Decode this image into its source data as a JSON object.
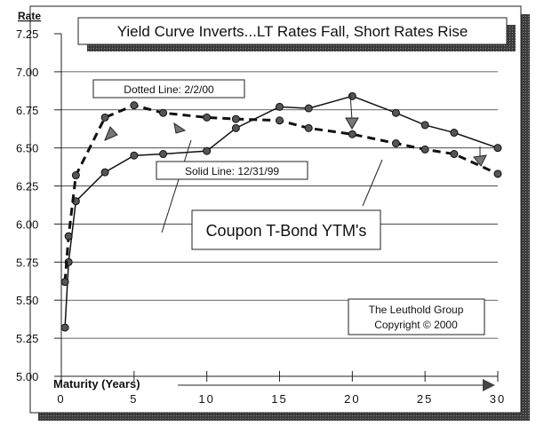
{
  "chart_data": {
    "type": "line",
    "title": "Yield Curve Inverts...LT Rates Fall, Short Rates Rise",
    "subtitle": "Coupon T-Bond YTM's",
    "xlabel": "Maturity (Years)",
    "ylabel": "Rate",
    "xlim": [
      0,
      30
    ],
    "ylim": [
      5.0,
      7.25
    ],
    "x_ticks": [
      "0",
      "5",
      "10",
      "15",
      "20",
      "25",
      "30"
    ],
    "y_ticks": [
      "5.00",
      "5.25",
      "5.50",
      "5.75",
      "6.00",
      "6.25",
      "6.50",
      "6.75",
      "7.00",
      "7.25"
    ],
    "grid": true,
    "series": [
      {
        "name": "Solid Line: 12/31/99",
        "style": "solid",
        "x": [
          0.25,
          0.5,
          1,
          3,
          5,
          7,
          10,
          12,
          15,
          17,
          20,
          23,
          25,
          27,
          30
        ],
        "y": [
          5.32,
          5.75,
          6.15,
          6.34,
          6.45,
          6.46,
          6.48,
          6.63,
          6.77,
          6.76,
          6.84,
          6.73,
          6.65,
          6.6,
          6.5
        ]
      },
      {
        "name": "Dotted Line: 2/2/00",
        "style": "dashed",
        "x": [
          0.25,
          0.5,
          1,
          3,
          5,
          7,
          10,
          12,
          15,
          17,
          20,
          23,
          25,
          27,
          30
        ],
        "y": [
          5.62,
          5.92,
          6.32,
          6.7,
          6.78,
          6.73,
          6.7,
          6.69,
          6.68,
          6.63,
          6.59,
          6.53,
          6.49,
          6.46,
          6.33
        ]
      }
    ],
    "annotations": {
      "source_line1": "The Leuthold Group",
      "source_line2": "Copyright © 2000"
    },
    "colors": {
      "line": "#111111",
      "marker": "#555555",
      "shadow": "#4a4a4a"
    }
  }
}
